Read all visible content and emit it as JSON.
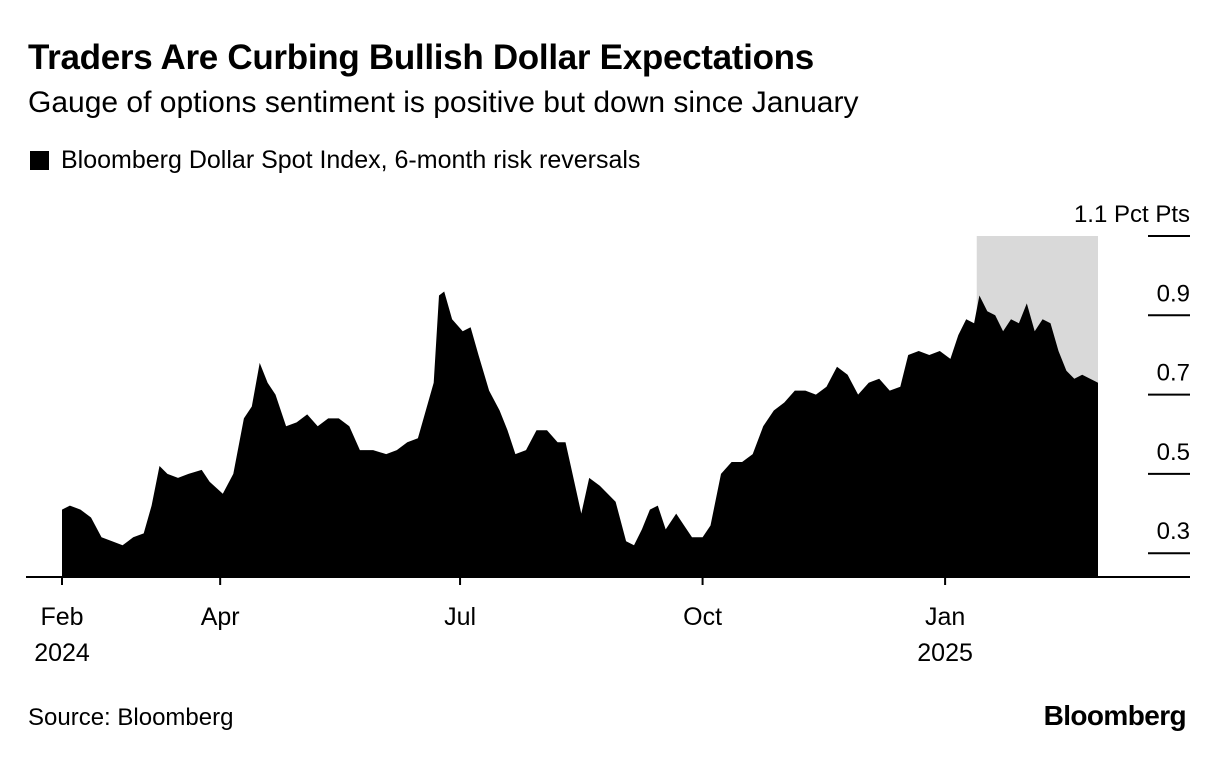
{
  "title": "Traders Are Curbing Bullish Dollar Expectations",
  "subtitle": "Gauge of options sentiment is positive but down since January",
  "source": "Source: Bloomberg",
  "logo": "Bloomberg",
  "colors": {
    "area": "#000000",
    "highlight": "#d9d9d9",
    "axis": "#000000"
  },
  "chart_data": {
    "type": "area",
    "title": "Traders Are Curbing Bullish Dollar Expectations",
    "subtitle": "Gauge of options sentiment is positive but down since January",
    "legend": [
      {
        "label": "Bloomberg Dollar Spot Index, 6-month risk reversals",
        "color": "#000000"
      }
    ],
    "legend_position": "top-left",
    "ylabel": "Pct Pts",
    "y_axis_position": "right",
    "ylim": [
      0.24,
      1.1
    ],
    "yticks": [
      {
        "value": 1.1,
        "label": "1.1 Pct Pts"
      },
      {
        "value": 0.9,
        "label": "0.9"
      },
      {
        "value": 0.7,
        "label": "0.7"
      },
      {
        "value": 0.5,
        "label": "0.5"
      },
      {
        "value": 0.3,
        "label": "0.3"
      }
    ],
    "xlim": [
      "2024-02-01",
      "2025-02-28"
    ],
    "xticks": [
      {
        "date": "2024-02-01",
        "label": "Feb",
        "sublabel": "2024"
      },
      {
        "date": "2024-04-01",
        "label": "Apr",
        "sublabel": ""
      },
      {
        "date": "2024-07-01",
        "label": "Jul",
        "sublabel": ""
      },
      {
        "date": "2024-10-01",
        "label": "Oct",
        "sublabel": ""
      },
      {
        "date": "2025-01-01",
        "label": "Jan",
        "sublabel": "2025"
      }
    ],
    "highlight": {
      "start": "2025-01-13",
      "end": "2025-02-28",
      "top": 1.1,
      "note": "shaded since January peak"
    },
    "series": [
      {
        "name": "Bloomberg Dollar Spot Index, 6-month risk reversals",
        "points": [
          [
            "2024-02-01",
            0.41
          ],
          [
            "2024-02-04",
            0.42
          ],
          [
            "2024-02-08",
            0.41
          ],
          [
            "2024-02-12",
            0.39
          ],
          [
            "2024-02-16",
            0.34
          ],
          [
            "2024-02-20",
            0.33
          ],
          [
            "2024-02-24",
            0.32
          ],
          [
            "2024-02-28",
            0.34
          ],
          [
            "2024-03-03",
            0.35
          ],
          [
            "2024-03-06",
            0.42
          ],
          [
            "2024-03-09",
            0.52
          ],
          [
            "2024-03-12",
            0.5
          ],
          [
            "2024-03-16",
            0.49
          ],
          [
            "2024-03-20",
            0.5
          ],
          [
            "2024-03-25",
            0.51
          ],
          [
            "2024-03-28",
            0.48
          ],
          [
            "2024-04-02",
            0.45
          ],
          [
            "2024-04-06",
            0.5
          ],
          [
            "2024-04-10",
            0.64
          ],
          [
            "2024-04-13",
            0.67
          ],
          [
            "2024-04-16",
            0.78
          ],
          [
            "2024-04-19",
            0.73
          ],
          [
            "2024-04-22",
            0.7
          ],
          [
            "2024-04-26",
            0.62
          ],
          [
            "2024-04-30",
            0.63
          ],
          [
            "2024-05-04",
            0.65
          ],
          [
            "2024-05-08",
            0.62
          ],
          [
            "2024-05-12",
            0.64
          ],
          [
            "2024-05-16",
            0.64
          ],
          [
            "2024-05-20",
            0.62
          ],
          [
            "2024-05-24",
            0.56
          ],
          [
            "2024-05-29",
            0.56
          ],
          [
            "2024-06-03",
            0.55
          ],
          [
            "2024-06-07",
            0.56
          ],
          [
            "2024-06-11",
            0.58
          ],
          [
            "2024-06-15",
            0.59
          ],
          [
            "2024-06-18",
            0.66
          ],
          [
            "2024-06-21",
            0.73
          ],
          [
            "2024-06-23",
            0.95
          ],
          [
            "2024-06-25",
            0.96
          ],
          [
            "2024-06-28",
            0.89
          ],
          [
            "2024-07-02",
            0.86
          ],
          [
            "2024-07-05",
            0.87
          ],
          [
            "2024-07-08",
            0.8
          ],
          [
            "2024-07-12",
            0.71
          ],
          [
            "2024-07-16",
            0.66
          ],
          [
            "2024-07-19",
            0.61
          ],
          [
            "2024-07-22",
            0.55
          ],
          [
            "2024-07-26",
            0.56
          ],
          [
            "2024-07-30",
            0.61
          ],
          [
            "2024-08-03",
            0.61
          ],
          [
            "2024-08-07",
            0.58
          ],
          [
            "2024-08-10",
            0.58
          ],
          [
            "2024-08-12",
            0.52
          ],
          [
            "2024-08-16",
            0.4
          ],
          [
            "2024-08-19",
            0.49
          ],
          [
            "2024-08-23",
            0.47
          ],
          [
            "2024-08-26",
            0.45
          ],
          [
            "2024-08-29",
            0.43
          ],
          [
            "2024-09-02",
            0.33
          ],
          [
            "2024-09-05",
            0.32
          ],
          [
            "2024-09-08",
            0.36
          ],
          [
            "2024-09-11",
            0.41
          ],
          [
            "2024-09-14",
            0.42
          ],
          [
            "2024-09-17",
            0.36
          ],
          [
            "2024-09-21",
            0.4
          ],
          [
            "2024-09-24",
            0.37
          ],
          [
            "2024-09-27",
            0.34
          ],
          [
            "2024-10-01",
            0.34
          ],
          [
            "2024-10-04",
            0.37
          ],
          [
            "2024-10-08",
            0.5
          ],
          [
            "2024-10-12",
            0.53
          ],
          [
            "2024-10-16",
            0.53
          ],
          [
            "2024-10-20",
            0.55
          ],
          [
            "2024-10-24",
            0.62
          ],
          [
            "2024-10-28",
            0.66
          ],
          [
            "2024-11-01",
            0.68
          ],
          [
            "2024-11-05",
            0.71
          ],
          [
            "2024-11-09",
            0.71
          ],
          [
            "2024-11-13",
            0.7
          ],
          [
            "2024-11-17",
            0.72
          ],
          [
            "2024-11-21",
            0.77
          ],
          [
            "2024-11-25",
            0.75
          ],
          [
            "2024-11-29",
            0.7
          ],
          [
            "2024-12-03",
            0.73
          ],
          [
            "2024-12-07",
            0.74
          ],
          [
            "2024-12-11",
            0.71
          ],
          [
            "2024-12-15",
            0.72
          ],
          [
            "2024-12-18",
            0.8
          ],
          [
            "2024-12-22",
            0.81
          ],
          [
            "2024-12-26",
            0.8
          ],
          [
            "2024-12-30",
            0.81
          ],
          [
            "2025-01-03",
            0.79
          ],
          [
            "2025-01-06",
            0.85
          ],
          [
            "2025-01-09",
            0.89
          ],
          [
            "2025-01-12",
            0.88
          ],
          [
            "2025-01-14",
            0.95
          ],
          [
            "2025-01-17",
            0.91
          ],
          [
            "2025-01-20",
            0.9
          ],
          [
            "2025-01-23",
            0.86
          ],
          [
            "2025-01-26",
            0.89
          ],
          [
            "2025-01-29",
            0.88
          ],
          [
            "2025-02-01",
            0.93
          ],
          [
            "2025-02-04",
            0.86
          ],
          [
            "2025-02-07",
            0.89
          ],
          [
            "2025-02-10",
            0.88
          ],
          [
            "2025-02-13",
            0.81
          ],
          [
            "2025-02-16",
            0.76
          ],
          [
            "2025-02-19",
            0.74
          ],
          [
            "2025-02-22",
            0.75
          ],
          [
            "2025-02-25",
            0.74
          ],
          [
            "2025-02-28",
            0.73
          ]
        ]
      }
    ]
  }
}
